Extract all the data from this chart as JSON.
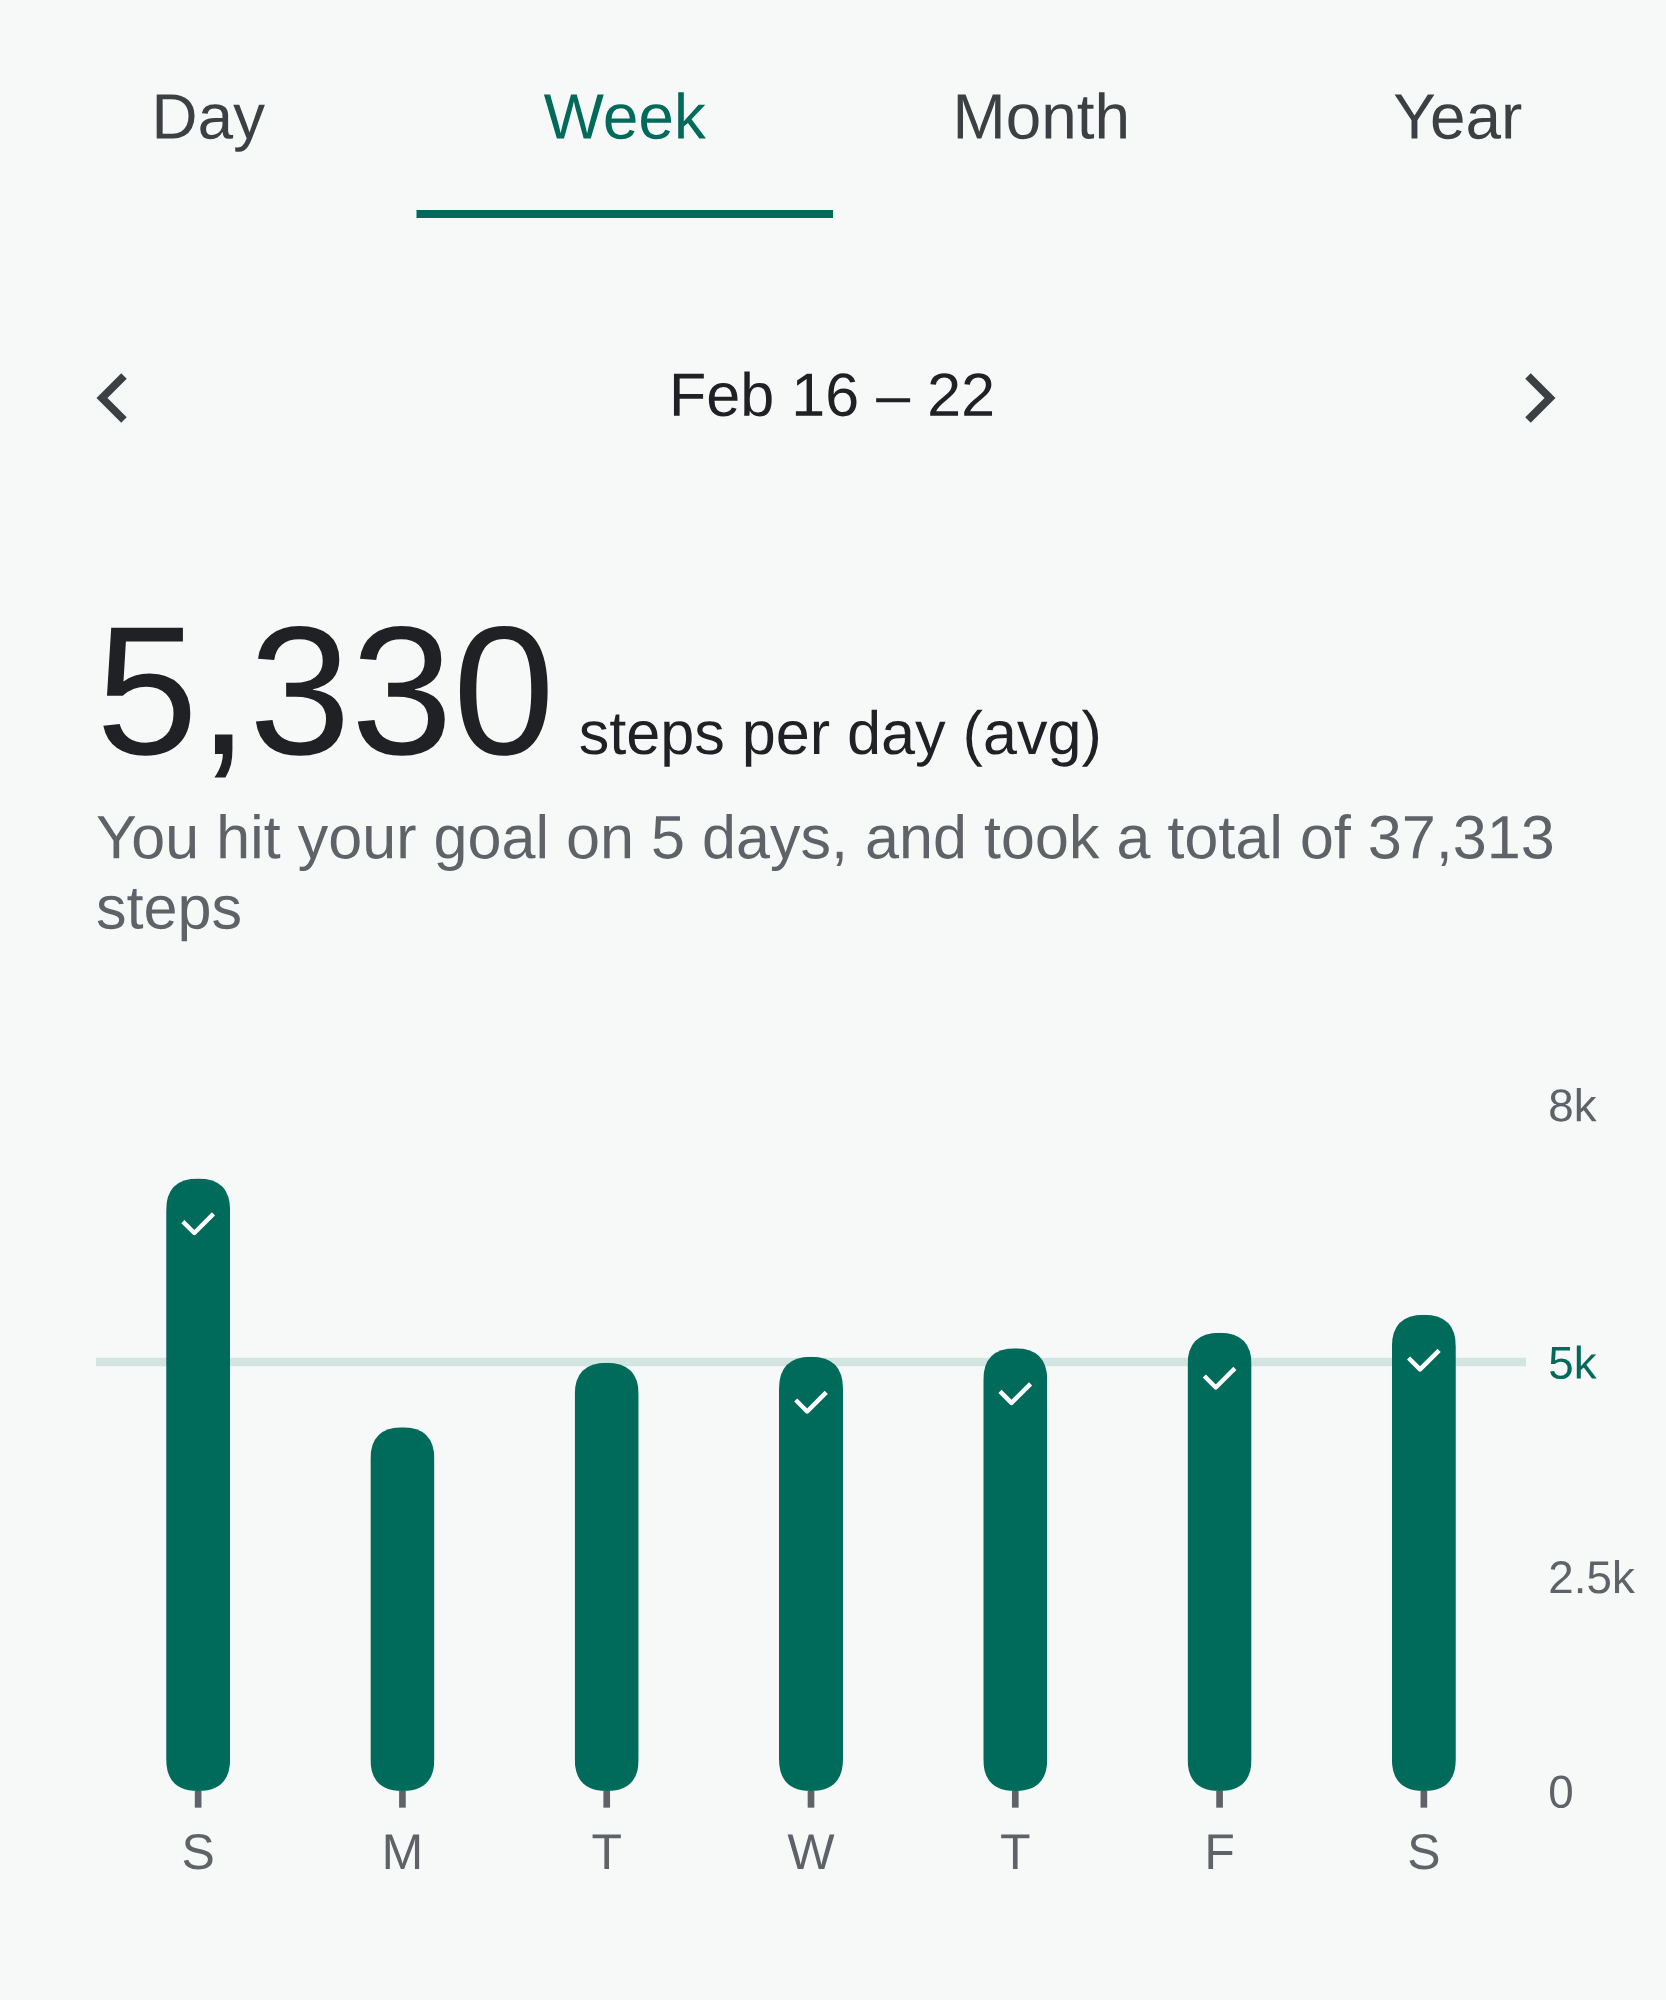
{
  "chart_data": {
    "type": "bar",
    "title": "Feb 16 – 22",
    "subtitle": "You hit your goal on 5 days, and took a total of 37,313 steps",
    "annotations": [
      "Day",
      "Week",
      "Month",
      "Year",
      "5,330",
      "steps per day (avg)"
    ],
    "categories": [
      "S",
      "M",
      "T",
      "W",
      "T",
      "F",
      "S"
    ],
    "values": [
      7140,
      4240,
      4990,
      5060,
      5160,
      5340,
      5550
    ],
    "color": "#006b5a",
    "ylim": [
      0,
      8000
    ],
    "yticks": [
      0,
      {
        "value": 2500,
        "label": "2.5k"
      },
      {
        "value": 5000,
        "label": "5k"
      },
      {
        "value": 8000,
        "label": "8k"
      }
    ],
    "ref_lines": [
      {
        "axis": "y",
        "value": 5000,
        "color": "#d3e5e1"
      }
    ]
  }
}
